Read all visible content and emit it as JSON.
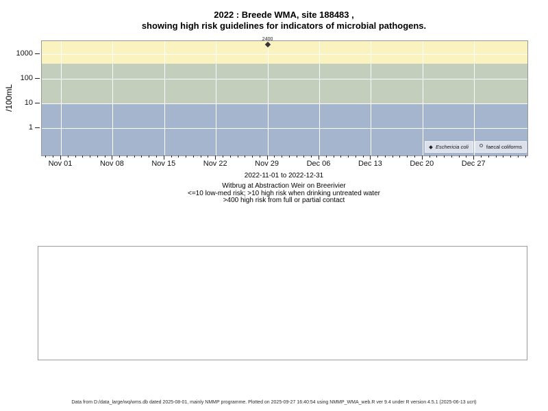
{
  "title": {
    "line1": "2022 : Breede WMA, site 188483 ,",
    "line2": "showing high risk guidelines for indicators of microbial pathogens."
  },
  "chart_data": {
    "type": "scatter",
    "y_axis": {
      "label": "/100mL",
      "scale": "log",
      "ticks": [
        1000,
        100,
        10,
        1
      ]
    },
    "x_axis": {
      "tick_labels": [
        "Nov 01",
        "Nov 08",
        "Nov 15",
        "Nov 22",
        "Nov 29",
        "Dec 06",
        "Dec 13",
        "Dec 20",
        "Dec 27"
      ],
      "minor_tick_interval": "1 day",
      "range": "2022-11-01 to 2022-12-31"
    },
    "bands": [
      {
        "name": "high-risk-full-or-partial-contact",
        "meaning": ">400 high risk from full or partial contact",
        "color": "#faf3bf",
        "hi": null,
        "lo": 400
      },
      {
        "name": "high-risk-drinking-untreated-water",
        "meaning": ">10 high risk when drinking untreated water",
        "color": "#c4cebc",
        "hi": 400,
        "lo": 10
      },
      {
        "name": "low-med-risk",
        "meaning": "<=10 low-med risk",
        "color": "#a5b5ce",
        "hi": 10,
        "lo": null
      }
    ],
    "series": [
      {
        "name": "Eschericia coli",
        "marker": "filled-diamond",
        "points": [
          {
            "x_label": "Nov 29",
            "week_index": 4,
            "value": 2400,
            "label": "2400"
          }
        ]
      },
      {
        "name": "faecal coliforms",
        "marker": "open-circle",
        "points": []
      }
    ],
    "grid": "white lines at weekly x ticks and decade y ticks",
    "legend_position": "bottom-right-inside"
  },
  "legend": {
    "items": [
      {
        "label": "Eschericia coli",
        "marker": "filled-diamond",
        "italic": true
      },
      {
        "label": "faecal coliforms",
        "marker": "open-circle",
        "italic": false
      }
    ]
  },
  "subtitle": {
    "line1": "2022-11-01 to 2022-12-31",
    "line2": "Witbrug at Abstraction Weir on Breerivier",
    "line3": "<=10 low-med risk; >10 high risk when drinking untreated water",
    "line4": ">400 high risk from full or partial contact"
  },
  "footer": {
    "text": "Data from D:/data_large/wq/wms.db dated 2025-08-01, mainly NMMP programme. Plotted on 2025-09-27 16:40:54 using NMMP_WMA_web.R ver 9.4 under R version 4.5.1 (2025-06-13 ucrt)"
  }
}
